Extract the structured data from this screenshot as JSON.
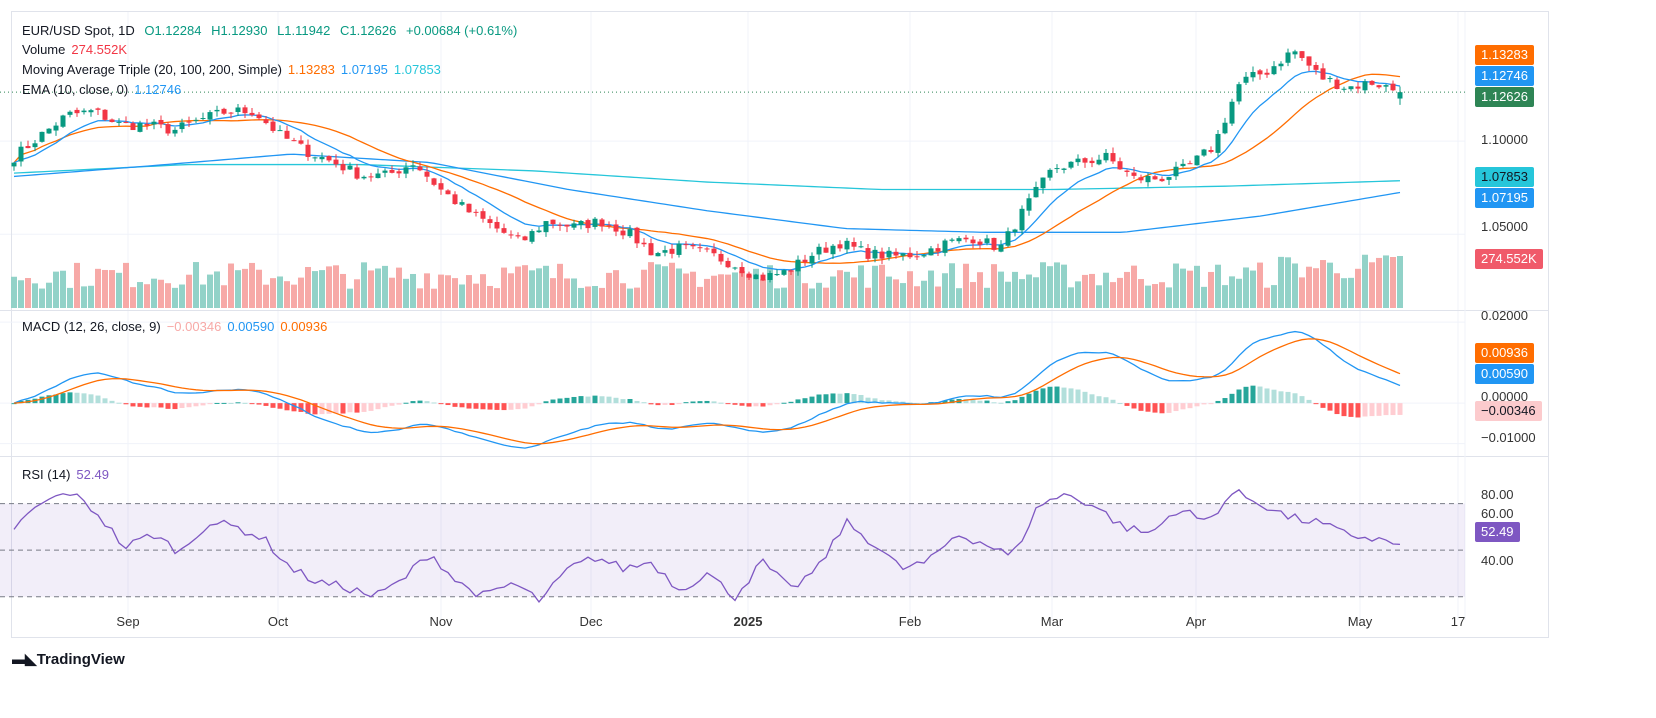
{
  "header": {
    "symbol": "EUR/USD Spot, 1D",
    "open": "O1.12284",
    "high": "H1.12930",
    "low": "L1.11942",
    "close": "C1.12626",
    "change": "+0.00684 (+0.61%)"
  },
  "volume": {
    "label": "Volume",
    "value": "274.552K"
  },
  "ma": {
    "label": "Moving Average Triple (20, 100, 200, Simple)",
    "v20": "1.13283",
    "v100": "1.07195",
    "v200": "1.07853"
  },
  "ema": {
    "label": "EMA (10, close, 0)",
    "value": "1.12746"
  },
  "macd": {
    "label": "MACD (12, 26, close, 9)",
    "hist": "−0.00346",
    "macd": "0.00590",
    "signal": "0.00936"
  },
  "rsi": {
    "label": "RSI (14)",
    "value": "52.49"
  },
  "price_tags": {
    "ma20": "1.13283",
    "ema": "1.12746",
    "close": "1.12626",
    "ma200": "1.07853",
    "ma100": "1.07195",
    "volume": "274.552K",
    "signal": "0.00936",
    "macd": "0.00590",
    "hist": "−0.00346",
    "rsi": "52.49"
  },
  "axes": {
    "price": [
      "1.10000",
      "1.05000"
    ],
    "macd": [
      "0.02000",
      "0.00000",
      "−0.01000"
    ],
    "rsi": [
      "80.00",
      "60.00",
      "40.00"
    ],
    "dates": [
      "Sep",
      "Oct",
      "Nov",
      "Dec",
      "2025",
      "Feb",
      "Mar",
      "Apr",
      "May",
      "17"
    ]
  },
  "brand": "TradingView",
  "colors": {
    "up": "#089981",
    "down": "#f23645",
    "ma20": "#ff6d00",
    "ma100": "#2196f3",
    "ma200": "#26c6da",
    "ema": "#2196f3",
    "rsi": "#7e57c2"
  },
  "chart_data": {
    "type": "candlestick",
    "bars": 199,
    "close_samples": [
      1.0914,
      1.103,
      1.114,
      1.116,
      1.1086,
      1.1086,
      1.1057,
      1.1115,
      1.116,
      1.116,
      1.103,
      1.0943,
      1.0885,
      1.0816,
      1.0816,
      1.0885,
      1.074,
      1.0626,
      1.054,
      1.0454,
      1.057,
      1.054,
      1.057,
      1.051,
      1.0397,
      1.0425,
      1.0397,
      1.034,
      1.0264,
      1.03,
      1.0397,
      1.0454,
      1.0397,
      1.038,
      1.0397,
      1.0454,
      1.048,
      1.0425,
      1.0655,
      1.0856,
      1.0885,
      1.0914,
      1.0799,
      1.0799,
      1.0856,
      1.097,
      1.1316,
      1.1374,
      1.1489,
      1.1345,
      1.1287,
      1.1316,
      1.1263
    ],
    "sma100_samples": [
      1.081,
      1.0868,
      1.093,
      1.0885,
      1.074,
      1.0626,
      1.053,
      1.051,
      1.051,
      1.0598,
      1.0724
    ],
    "sma200_samples": [
      1.0828,
      1.0874,
      1.0874,
      1.084,
      1.078,
      1.074,
      1.074,
      1.0758,
      1.0787
    ],
    "rsi_samples": [
      59.6,
      70,
      75,
      66,
      51,
      57,
      49,
      62,
      60,
      55,
      42,
      36,
      34,
      30,
      37,
      49,
      36,
      30,
      36,
      28,
      42,
      47,
      42,
      45,
      33,
      40,
      30,
      45,
      33,
      42,
      62,
      53,
      42,
      45,
      57,
      53,
      47,
      70,
      74,
      69,
      60,
      57,
      68,
      62,
      75,
      70,
      64,
      62,
      57,
      55,
      52.49
    ],
    "last": {
      "open": 1.12284,
      "high": 1.1293,
      "low": 1.11942,
      "close": 1.12626
    },
    "price_range": [
      1.0093,
      1.1693
    ],
    "macd_range": [
      -0.0128,
      0.0225
    ],
    "rsi_range": [
      20,
      90
    ],
    "rsi_bands": [
      70,
      30
    ]
  }
}
